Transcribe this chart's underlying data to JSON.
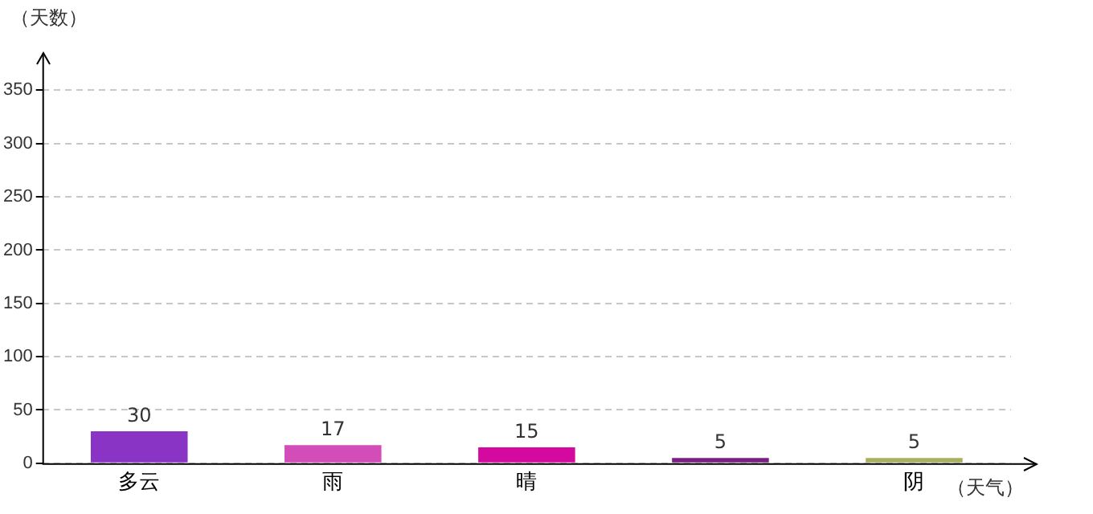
{
  "chart_data": {
    "type": "bar",
    "ylabel": "（天数）",
    "xlabel": "（天气）",
    "categories": [
      "多云",
      "雨",
      "晴",
      null,
      "阴"
    ],
    "values": [
      30,
      17,
      15,
      5,
      5
    ],
    "colors": [
      "#8a34c6",
      "#d24db8",
      "#d40aa0",
      "#7a1f82",
      "#a8b060"
    ],
    "ylim": [
      0,
      385
    ],
    "yticks": [
      0,
      50,
      100,
      150,
      200,
      250,
      300,
      350
    ],
    "grid": "y",
    "data_labels": true,
    "legend": false
  }
}
